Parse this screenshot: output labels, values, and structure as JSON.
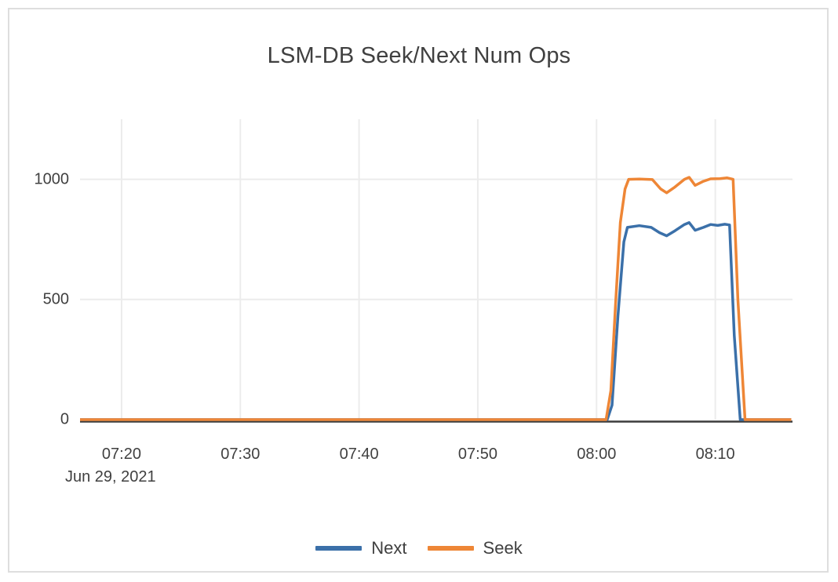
{
  "card": {
    "title": "LSM-DB Seek/Next Num Ops"
  },
  "colors": {
    "next_blue": "#3b70a9",
    "seek_orange": "#ee8636",
    "text": "#404040",
    "gridline": "#ececec",
    "zero_axis": "#3c3c3c",
    "card_border": "#dedede"
  },
  "chart_data": {
    "type": "line",
    "title": "LSM-DB Seek/Next Num Ops",
    "xlabel": "",
    "ylabel": "",
    "grid": true,
    "legend_position": "bottom-center",
    "x_axis": {
      "date_label": "Jun 29, 2021",
      "tick_labels": [
        "07:20",
        "07:30",
        "07:40",
        "07:50",
        "08:00",
        "08:10"
      ],
      "tick_minutes": [
        440,
        450,
        460,
        470,
        480,
        490
      ],
      "range_minutes": [
        436.5,
        496.5
      ]
    },
    "y_axis": {
      "tick_labels": [
        "0",
        "500",
        "1000"
      ],
      "tick_values": [
        0,
        500,
        1000
      ],
      "range": [
        0,
        1250
      ]
    },
    "series": [
      {
        "name": "Next",
        "color": "#3b70a9",
        "points": [
          [
            436.5,
            0
          ],
          [
            442,
            0
          ],
          [
            450,
            0
          ],
          [
            458,
            0
          ],
          [
            466,
            0
          ],
          [
            474,
            0
          ],
          [
            480.9,
            0
          ],
          [
            481.3,
            60
          ],
          [
            481.8,
            430
          ],
          [
            482.3,
            740
          ],
          [
            482.6,
            800
          ],
          [
            483.6,
            807
          ],
          [
            484.6,
            800
          ],
          [
            485.3,
            778
          ],
          [
            485.9,
            765
          ],
          [
            486.6,
            786
          ],
          [
            487.4,
            812
          ],
          [
            487.8,
            820
          ],
          [
            488.3,
            788
          ],
          [
            489.0,
            800
          ],
          [
            489.6,
            812
          ],
          [
            490.2,
            808
          ],
          [
            490.8,
            813
          ],
          [
            491.2,
            810
          ],
          [
            491.6,
            350
          ],
          [
            492.1,
            0
          ],
          [
            494,
            0
          ],
          [
            496.4,
            0
          ]
        ]
      },
      {
        "name": "Seek",
        "color": "#ee8636",
        "points": [
          [
            436.5,
            0
          ],
          [
            442,
            0
          ],
          [
            450,
            0
          ],
          [
            458,
            0
          ],
          [
            466,
            0
          ],
          [
            474,
            0
          ],
          [
            480.8,
            0
          ],
          [
            481.2,
            120
          ],
          [
            481.6,
            480
          ],
          [
            482.0,
            820
          ],
          [
            482.4,
            960
          ],
          [
            482.7,
            1000
          ],
          [
            483.6,
            1001
          ],
          [
            484.7,
            999
          ],
          [
            485.4,
            960
          ],
          [
            485.9,
            944
          ],
          [
            486.6,
            968
          ],
          [
            487.4,
            1000
          ],
          [
            487.8,
            1008
          ],
          [
            488.3,
            975
          ],
          [
            489.0,
            992
          ],
          [
            489.6,
            1002
          ],
          [
            490.4,
            1003
          ],
          [
            491.0,
            1006
          ],
          [
            491.5,
            1000
          ],
          [
            491.9,
            500
          ],
          [
            492.5,
            0
          ],
          [
            494,
            0
          ],
          [
            496.4,
            0
          ]
        ]
      }
    ]
  }
}
